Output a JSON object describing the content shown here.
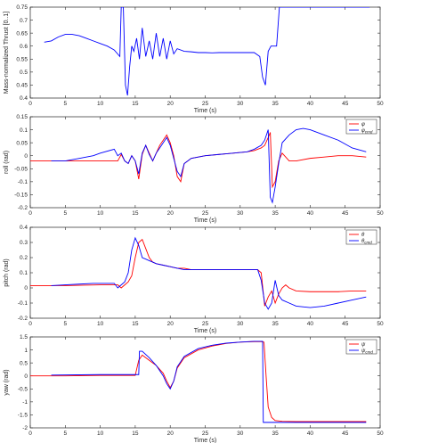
{
  "chart_data": [
    {
      "type": "line",
      "title": "",
      "xlabel": "Time (s)",
      "ylabel": "Mass-normalized Thrust [0..1]",
      "xlim": [
        0,
        50
      ],
      "ylim": [
        0.4,
        0.75
      ],
      "xticks": [
        0,
        5,
        10,
        15,
        20,
        25,
        30,
        35,
        40,
        45,
        50
      ],
      "yticks": [
        0.4,
        0.45,
        0.5,
        0.55,
        0.6,
        0.65,
        0.7,
        0.75
      ],
      "yticklabels": [
        "0.4",
        "0.45",
        "0.5",
        "0.55",
        "0.6",
        "0.65",
        "0.7",
        "0.75"
      ],
      "grid": false,
      "legend": "none",
      "series": [
        {
          "color": "#0000ff",
          "x": [
            2.0,
            3.0,
            4.0,
            5.0,
            6.0,
            7.0,
            8.0,
            9.0,
            10.0,
            11.0,
            12.0,
            12.8,
            13.0,
            13.3,
            13.6,
            13.9,
            14.2,
            14.5,
            14.8,
            15.2,
            15.6,
            16.0,
            16.5,
            17.0,
            17.5,
            18.0,
            18.5,
            19.0,
            19.5,
            20.0,
            20.5,
            21.0,
            22.0,
            23.0,
            24.0,
            25.0,
            26.0,
            27.0,
            28.0,
            29.0,
            30.0,
            31.0,
            32.0,
            32.8,
            33.2,
            33.6,
            34.0,
            34.4,
            34.8,
            35.2,
            35.6,
            36.0,
            37.0,
            38.0,
            40.0,
            44.0,
            48.5
          ],
          "y": [
            0.615,
            0.62,
            0.635,
            0.645,
            0.645,
            0.64,
            0.63,
            0.62,
            0.61,
            0.6,
            0.585,
            0.56,
            0.75,
            0.75,
            0.45,
            0.41,
            0.52,
            0.6,
            0.58,
            0.63,
            0.55,
            0.67,
            0.56,
            0.62,
            0.55,
            0.65,
            0.56,
            0.63,
            0.55,
            0.62,
            0.57,
            0.59,
            0.58,
            0.578,
            0.575,
            0.575,
            0.574,
            0.575,
            0.575,
            0.575,
            0.575,
            0.575,
            0.575,
            0.56,
            0.48,
            0.45,
            0.58,
            0.6,
            0.6,
            0.6,
            0.75,
            0.75,
            0.75,
            0.75,
            0.75,
            0.75,
            0.75
          ]
        }
      ]
    },
    {
      "type": "line",
      "title": "",
      "xlabel": "Time (s)",
      "ylabel": "roll (rad)",
      "xlim": [
        0,
        50
      ],
      "ylim": [
        -0.2,
        0.15
      ],
      "xticks": [
        0,
        5,
        10,
        15,
        20,
        25,
        30,
        35,
        40,
        45,
        50
      ],
      "yticks": [
        -0.2,
        -0.15,
        -0.1,
        -0.05,
        0,
        0.05,
        0.1,
        0.15
      ],
      "yticklabels": [
        "-0.2",
        "-0.15",
        "-0.1",
        "-0.05",
        "0",
        "0.05",
        "0.1",
        "0.15"
      ],
      "grid": false,
      "legend": "top-right",
      "series": [
        {
          "name": "φ",
          "color": "#ff0000",
          "x": [
            0,
            5,
            10,
            12.5,
            13.0,
            13.5,
            14.0,
            14.5,
            15.0,
            15.5,
            16.0,
            16.5,
            17.0,
            17.5,
            18.0,
            18.5,
            19.0,
            19.5,
            20.0,
            20.5,
            21.0,
            21.5,
            22.0,
            23.0,
            25.0,
            27.0,
            29.0,
            31.0,
            32.0,
            33.0,
            33.5,
            34.0,
            34.3,
            34.6,
            35.0,
            35.5,
            36.0,
            37.0,
            38.0,
            40.0,
            42.0,
            44.0,
            46.0,
            48.0
          ],
          "y": [
            -0.02,
            -0.02,
            -0.02,
            -0.02,
            0.005,
            -0.02,
            -0.03,
            0.0,
            -0.02,
            -0.09,
            0.005,
            0.04,
            0.01,
            -0.02,
            0.01,
            0.04,
            0.06,
            0.08,
            0.05,
            0.0,
            -0.08,
            -0.1,
            -0.03,
            -0.01,
            0.0,
            0.005,
            0.01,
            0.015,
            0.02,
            0.03,
            0.04,
            0.07,
            0.09,
            -0.12,
            -0.1,
            -0.02,
            0.01,
            -0.02,
            -0.02,
            -0.01,
            -0.005,
            0.0,
            0.0,
            -0.005
          ]
        },
        {
          "name": "φ_cmd",
          "color": "#0000ff",
          "x": [
            3.0,
            5.0,
            7.0,
            9.0,
            10.0,
            12.0,
            12.5,
            13.0,
            13.5,
            14.0,
            14.5,
            15.0,
            15.5,
            16.0,
            16.5,
            17.0,
            17.5,
            18.0,
            18.5,
            19.0,
            19.5,
            20.0,
            20.5,
            21.0,
            21.5,
            22.0,
            23.0,
            25.0,
            27.0,
            29.0,
            31.0,
            32.0,
            33.0,
            33.5,
            34.0,
            34.3,
            34.6,
            35.0,
            35.5,
            36.0,
            37.0,
            38.0,
            39.0,
            40.0,
            42.0,
            44.0,
            46.0,
            48.0
          ],
          "y": [
            -0.02,
            -0.02,
            -0.01,
            0.0,
            0.01,
            0.025,
            0.0,
            0.01,
            -0.02,
            -0.03,
            0.0,
            -0.02,
            -0.07,
            0.01,
            0.04,
            0.005,
            -0.02,
            0.01,
            0.03,
            0.05,
            0.07,
            0.04,
            -0.01,
            -0.06,
            -0.08,
            -0.03,
            -0.01,
            0.0,
            0.005,
            0.01,
            0.015,
            0.025,
            0.04,
            0.06,
            0.1,
            -0.16,
            -0.18,
            -0.12,
            -0.03,
            0.05,
            0.08,
            0.1,
            0.105,
            0.1,
            0.08,
            0.06,
            0.03,
            0.015
          ]
        }
      ]
    },
    {
      "type": "line",
      "title": "",
      "xlabel": "Time (s)",
      "ylabel": "pitch (rad)",
      "xlim": [
        0,
        50
      ],
      "ylim": [
        -0.2,
        0.4
      ],
      "xticks": [
        0,
        5,
        10,
        15,
        20,
        25,
        30,
        35,
        40,
        45,
        50
      ],
      "yticks": [
        -0.2,
        -0.1,
        0,
        0.1,
        0.2,
        0.3,
        0.4
      ],
      "yticklabels": [
        "-0.2",
        "-0.1",
        "0",
        "0.1",
        "0.2",
        "0.3",
        "0.4"
      ],
      "grid": false,
      "legend": "top-right",
      "series": [
        {
          "name": "θ",
          "color": "#ff0000",
          "x": [
            0,
            5,
            10,
            12.5,
            13.0,
            13.5,
            14.0,
            14.5,
            15.0,
            15.5,
            16.0,
            16.5,
            17.0,
            17.5,
            18.0,
            19.0,
            20.0,
            21.0,
            22.0,
            23.0,
            25.0,
            27.0,
            29.0,
            31.0,
            32.5,
            33.0,
            33.5,
            34.0,
            34.5,
            35.0,
            35.5,
            36.0,
            36.5,
            37.0,
            38.0,
            40.0,
            42.0,
            44.0,
            46.0,
            48.0
          ],
          "y": [
            0.015,
            0.015,
            0.02,
            0.02,
            0.0,
            0.02,
            0.04,
            0.08,
            0.2,
            0.3,
            0.32,
            0.26,
            0.2,
            0.17,
            0.16,
            0.15,
            0.14,
            0.13,
            0.13,
            0.12,
            0.12,
            0.12,
            0.12,
            0.12,
            0.12,
            0.1,
            -0.12,
            -0.06,
            -0.02,
            -0.1,
            -0.04,
            0.0,
            0.02,
            0.0,
            -0.02,
            -0.025,
            -0.025,
            -0.025,
            -0.02,
            -0.02
          ]
        },
        {
          "name": "θ_cmd",
          "color": "#0000ff",
          "x": [
            3.0,
            5.0,
            7.0,
            9.0,
            10.0,
            12.0,
            12.5,
            13.0,
            13.5,
            14.0,
            14.5,
            15.0,
            15.5,
            16.0,
            16.5,
            17.0,
            17.5,
            18.0,
            19.0,
            20.0,
            21.0,
            22.0,
            23.0,
            25.0,
            27.0,
            29.0,
            31.0,
            32.5,
            33.0,
            33.5,
            34.0,
            34.5,
            35.0,
            35.5,
            36.0,
            37.0,
            38.0,
            40.0,
            42.0,
            44.0,
            46.0,
            48.0
          ],
          "y": [
            0.015,
            0.02,
            0.025,
            0.03,
            0.03,
            0.03,
            0.0,
            0.02,
            0.04,
            0.1,
            0.25,
            0.33,
            0.28,
            0.2,
            0.19,
            0.18,
            0.17,
            0.16,
            0.15,
            0.14,
            0.13,
            0.12,
            0.12,
            0.12,
            0.12,
            0.12,
            0.12,
            0.12,
            0.05,
            -0.1,
            -0.14,
            -0.1,
            0.05,
            -0.05,
            -0.08,
            -0.1,
            -0.12,
            -0.13,
            -0.12,
            -0.1,
            -0.08,
            -0.06
          ]
        }
      ]
    },
    {
      "type": "line",
      "title": "",
      "xlabel": "Time (s)",
      "ylabel": "yaw (rad)",
      "xlim": [
        0,
        50
      ],
      "ylim": [
        -2,
        1.5
      ],
      "xticks": [
        0,
        5,
        10,
        15,
        20,
        25,
        30,
        35,
        40,
        45,
        50
      ],
      "yticks": [
        -2,
        -1.5,
        -1,
        -0.5,
        0,
        0.5,
        1,
        1.5
      ],
      "yticklabels": [
        "-2",
        "-1.5",
        "-1",
        "-0.5",
        "0",
        "0.5",
        "1",
        "1.5"
      ],
      "grid": false,
      "legend": "top-right",
      "series": [
        {
          "name": "ψ",
          "color": "#ff0000",
          "x": [
            0,
            2,
            5,
            10,
            15.0,
            15.5,
            16.0,
            17.0,
            18.0,
            19.0,
            19.5,
            20.0,
            20.5,
            21.0,
            22.0,
            24.0,
            26.0,
            28.0,
            30.0,
            32.0,
            33.0,
            33.4,
            33.7,
            34.0,
            34.5,
            35.0,
            36.0,
            38.0,
            48.0
          ],
          "y": [
            0.0,
            0.0,
            0.0,
            0.02,
            0.02,
            0.6,
            0.8,
            0.6,
            0.4,
            0.1,
            -0.2,
            -0.45,
            -0.2,
            0.3,
            0.7,
            1.0,
            1.15,
            1.25,
            1.3,
            1.32,
            1.32,
            1.3,
            0.0,
            -1.2,
            -1.6,
            -1.72,
            -1.75,
            -1.76,
            -1.76
          ]
        },
        {
          "name": "ψ_cmd",
          "color": "#0000ff",
          "x": [
            3.0,
            10.0,
            15.5,
            15.6,
            16.0,
            17.0,
            18.0,
            19.0,
            19.5,
            20.0,
            20.5,
            21.0,
            22.0,
            24.0,
            26.0,
            28.0,
            30.0,
            32.0,
            33.2,
            33.3,
            35.0,
            40.0,
            48.0
          ],
          "y": [
            0.03,
            0.05,
            0.05,
            0.95,
            0.95,
            0.7,
            0.4,
            0.0,
            -0.3,
            -0.5,
            -0.2,
            0.35,
            0.75,
            1.05,
            1.18,
            1.26,
            1.3,
            1.33,
            1.33,
            -1.79,
            -1.79,
            -1.79,
            -1.79
          ]
        }
      ]
    }
  ]
}
